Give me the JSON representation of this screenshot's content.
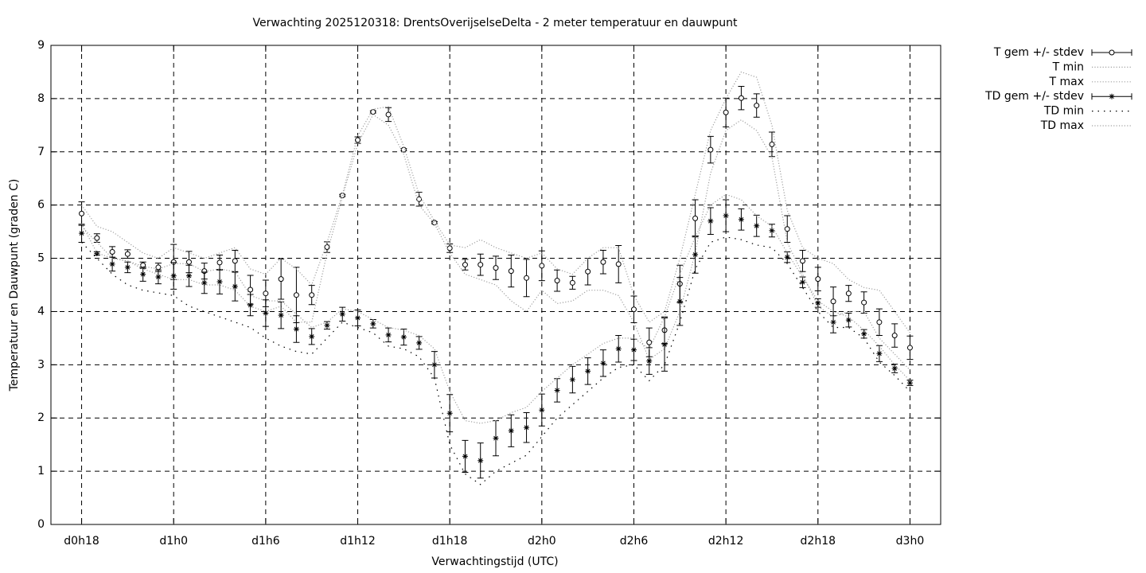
{
  "chart_data": {
    "type": "errorbar",
    "title": "Verwachting 2025120318: DrentsOverijselseDelta - 2 meter temperatuur en dauwpunt",
    "xlabel": "Verwachtingstijd (UTC)",
    "ylabel": "Temperatuur en Dauwpunt (graden C)",
    "x": [
      18,
      19,
      20,
      21,
      22,
      23,
      24,
      25,
      26,
      27,
      28,
      29,
      30,
      31,
      32,
      33,
      34,
      35,
      36,
      37,
      38,
      39,
      40,
      41,
      42,
      43,
      44,
      45,
      46,
      47,
      48,
      49,
      50,
      51,
      52,
      53,
      54,
      55,
      56,
      57,
      58,
      59,
      60,
      61,
      62,
      63,
      64,
      65,
      66,
      67,
      68,
      69,
      70,
      71,
      72
    ],
    "xlim": [
      16,
      74
    ],
    "xticks": [
      {
        "value": 18,
        "label": "d0h18"
      },
      {
        "value": 24,
        "label": "d1h0"
      },
      {
        "value": 30,
        "label": "d1h6"
      },
      {
        "value": 36,
        "label": "d1h12"
      },
      {
        "value": 42,
        "label": "d1h18"
      },
      {
        "value": 48,
        "label": "d2h0"
      },
      {
        "value": 54,
        "label": "d2h6"
      },
      {
        "value": 60,
        "label": "d2h12"
      },
      {
        "value": 66,
        "label": "d2h18"
      },
      {
        "value": 72,
        "label": "d3h0"
      }
    ],
    "ylim": [
      0,
      9
    ],
    "yticks": [
      0,
      1,
      2,
      3,
      4,
      5,
      6,
      7,
      8,
      9
    ],
    "grid": true,
    "legend": "outside-top-right",
    "series": [
      {
        "name": "T gem +/- stdev",
        "color": "#000000",
        "marker": "circle",
        "style": "errorbar",
        "values": [
          5.84,
          5.38,
          5.12,
          5.08,
          4.87,
          4.83,
          4.93,
          4.93,
          4.76,
          4.92,
          4.95,
          4.41,
          4.34,
          4.61,
          4.31,
          4.31,
          5.21,
          6.18,
          7.22,
          7.75,
          7.7,
          7.04,
          6.11,
          5.67,
          5.19,
          4.88,
          4.88,
          4.82,
          4.76,
          4.63,
          4.86,
          4.58,
          4.54,
          4.75,
          4.93,
          4.89,
          4.04,
          3.42,
          3.65,
          4.52,
          5.75,
          7.04,
          7.74,
          8.01,
          7.87,
          7.14,
          5.55,
          4.95,
          4.61,
          4.19,
          4.34,
          4.17,
          3.8,
          3.55,
          3.32
        ],
        "errors": [
          0.22,
          0.08,
          0.1,
          0.08,
          0.06,
          0.08,
          0.33,
          0.2,
          0.15,
          0.14,
          0.2,
          0.27,
          0.25,
          0.38,
          0.52,
          0.18,
          0.1,
          0.02,
          0.06,
          0.02,
          0.13,
          0.02,
          0.13,
          0.02,
          0.08,
          0.1,
          0.2,
          0.22,
          0.3,
          0.35,
          0.28,
          0.2,
          0.12,
          0.25,
          0.22,
          0.35,
          0.25,
          0.27,
          0.25,
          0.35,
          0.35,
          0.25,
          0.27,
          0.22,
          0.22,
          0.23,
          0.25,
          0.2,
          0.22,
          0.27,
          0.15,
          0.2,
          0.25,
          0.22,
          0.22
        ]
      },
      {
        "name": "T min",
        "color": "#a0a0a0",
        "style": "dotted",
        "values": [
          5.6,
          5.3,
          5.0,
          4.95,
          4.8,
          4.7,
          4.6,
          4.6,
          4.5,
          4.5,
          4.4,
          4.1,
          4.0,
          4.1,
          3.8,
          3.8,
          5.1,
          6.15,
          7.15,
          7.7,
          7.5,
          6.95,
          6.0,
          5.65,
          5.1,
          4.7,
          4.6,
          4.5,
          4.2,
          4.0,
          4.4,
          4.15,
          4.2,
          4.4,
          4.4,
          4.3,
          3.8,
          3.1,
          3.3,
          4.0,
          5.1,
          6.6,
          7.4,
          7.6,
          7.4,
          6.9,
          5.3,
          4.7,
          4.1,
          3.9,
          4.0,
          4.0,
          3.5,
          3.2,
          2.9
        ]
      },
      {
        "name": "T max",
        "color": "#a0a0a0",
        "style": "dotted",
        "values": [
          6.0,
          5.6,
          5.5,
          5.3,
          5.1,
          5.0,
          5.2,
          5.1,
          5.0,
          5.1,
          5.2,
          4.8,
          4.7,
          5.0,
          4.8,
          4.5,
          5.3,
          6.2,
          7.3,
          7.8,
          7.85,
          7.1,
          6.2,
          5.7,
          5.25,
          5.2,
          5.35,
          5.2,
          5.1,
          5.0,
          5.1,
          4.8,
          4.7,
          5.0,
          5.2,
          5.2,
          4.3,
          3.8,
          4.0,
          5.0,
          6.2,
          7.4,
          8.0,
          8.5,
          8.4,
          7.5,
          5.9,
          5.2,
          5.0,
          4.9,
          4.6,
          4.45,
          4.4,
          4.0,
          3.6
        ]
      },
      {
        "name": "TD gem +/- stdev",
        "color": "#000000",
        "marker": "star",
        "style": "errorbar",
        "values": [
          5.47,
          5.09,
          4.89,
          4.83,
          4.7,
          4.65,
          4.67,
          4.67,
          4.54,
          4.56,
          4.47,
          4.12,
          3.97,
          3.93,
          3.67,
          3.53,
          3.74,
          3.95,
          3.88,
          3.77,
          3.56,
          3.52,
          3.41,
          3.0,
          2.09,
          1.28,
          1.2,
          1.62,
          1.76,
          1.82,
          2.15,
          2.52,
          2.72,
          2.88,
          3.03,
          3.3,
          3.28,
          3.07,
          3.38,
          4.19,
          5.07,
          5.7,
          5.8,
          5.73,
          5.61,
          5.52,
          5.02,
          4.55,
          4.16,
          3.8,
          3.84,
          3.58,
          3.21,
          2.93,
          2.66
        ],
        "errors": [
          0.17,
          0.03,
          0.13,
          0.1,
          0.13,
          0.13,
          0.25,
          0.2,
          0.2,
          0.23,
          0.27,
          0.2,
          0.25,
          0.25,
          0.25,
          0.15,
          0.07,
          0.13,
          0.15,
          0.08,
          0.13,
          0.15,
          0.12,
          0.25,
          0.35,
          0.3,
          0.33,
          0.33,
          0.3,
          0.28,
          0.3,
          0.22,
          0.25,
          0.25,
          0.25,
          0.25,
          0.2,
          0.25,
          0.5,
          0.45,
          0.35,
          0.25,
          0.3,
          0.2,
          0.2,
          0.12,
          0.1,
          0.1,
          0.08,
          0.2,
          0.13,
          0.08,
          0.15,
          0.08,
          0.05
        ]
      },
      {
        "name": "TD min",
        "color": "#000000",
        "style": "sparse-dotted",
        "values": [
          5.3,
          5.0,
          4.7,
          4.5,
          4.4,
          4.35,
          4.3,
          4.1,
          4.0,
          3.9,
          3.8,
          3.7,
          3.5,
          3.35,
          3.25,
          3.2,
          3.5,
          3.8,
          3.7,
          3.6,
          3.35,
          3.3,
          3.15,
          2.75,
          1.5,
          0.95,
          0.75,
          1.0,
          1.15,
          1.3,
          1.65,
          2.0,
          2.25,
          2.5,
          2.75,
          2.95,
          3.0,
          2.7,
          3.0,
          3.8,
          4.8,
          5.3,
          5.4,
          5.35,
          5.25,
          5.2,
          4.9,
          4.45,
          4.0,
          3.7,
          3.7,
          3.5,
          3.05,
          2.8,
          2.5
        ]
      },
      {
        "name": "TD max",
        "color": "#a0a0a0",
        "style": "dotted",
        "values": [
          5.65,
          5.1,
          5.0,
          4.95,
          4.85,
          4.8,
          4.9,
          4.9,
          4.75,
          4.8,
          4.75,
          4.3,
          4.2,
          4.2,
          3.95,
          3.7,
          3.8,
          4.05,
          4.0,
          3.85,
          3.7,
          3.65,
          3.55,
          3.3,
          2.5,
          1.95,
          1.9,
          1.95,
          2.1,
          2.2,
          2.5,
          2.75,
          3.0,
          3.2,
          3.4,
          3.5,
          3.5,
          3.3,
          3.9,
          4.7,
          5.4,
          6.0,
          6.2,
          6.1,
          5.8,
          5.6,
          5.1,
          4.65,
          4.2,
          4.0,
          3.9,
          3.65,
          3.35,
          3.0,
          2.7
        ]
      }
    ]
  }
}
